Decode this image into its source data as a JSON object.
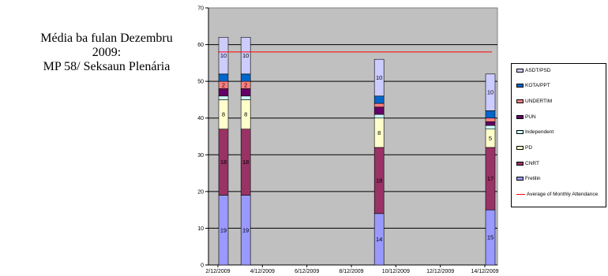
{
  "title_lines": [
    "Média ba fulan Dezembru",
    "2009:",
    "MP 58/ Seksaun Plenária"
  ],
  "chart_data": {
    "type": "bar",
    "stacked": true,
    "x_tick_labels": [
      "2/12/2009",
      "4/12/2009",
      "6/12/2009",
      "8/12/2009",
      "10/12/2009",
      "12/12/2009",
      "14/12/2009"
    ],
    "y_tick_labels": [
      "0",
      "10",
      "20",
      "30",
      "40",
      "50",
      "60",
      "70"
    ],
    "ylim": [
      0,
      70
    ],
    "grid": true,
    "legend_position": "right",
    "bars": [
      {
        "date": "2/12/2009",
        "total": 62
      },
      {
        "date": "3/12/2009",
        "total": 62
      },
      {
        "date": "9/12/2009",
        "total": 56
      },
      {
        "date": "14/12/2009",
        "total": 52
      }
    ],
    "series": [
      {
        "name": "Fretilin",
        "color": "#9999ff",
        "values": [
          19,
          19,
          14,
          15
        ],
        "labels": [
          "19",
          "19",
          "14",
          "15"
        ]
      },
      {
        "name": "CNRT",
        "color": "#993366",
        "values": [
          18,
          18,
          18,
          17
        ],
        "labels": [
          "18",
          "18",
          "18",
          "17"
        ]
      },
      {
        "name": "PD",
        "color": "#ffffcc",
        "values": [
          8,
          8,
          8,
          5
        ],
        "labels": [
          "8",
          "8",
          "8",
          "5"
        ]
      },
      {
        "name": "Independent",
        "color": "#ccffff",
        "values": [
          1,
          1,
          1,
          1
        ],
        "labels": [
          "",
          "",
          "",
          ""
        ]
      },
      {
        "name": "PUN",
        "color": "#660066",
        "values": [
          2,
          2,
          2,
          1
        ],
        "labels": [
          "",
          "",
          "",
          ""
        ]
      },
      {
        "name": "UNDERTIM",
        "color": "#ff8080",
        "values": [
          2,
          2,
          1,
          1
        ],
        "labels": [
          "2",
          "2",
          "",
          ""
        ]
      },
      {
        "name": "KOTA/PPT",
        "color": "#0066cc",
        "values": [
          2,
          2,
          2,
          2
        ],
        "labels": [
          "",
          "",
          "",
          ""
        ]
      },
      {
        "name": "ASDT/PSD",
        "color": "#ccccff",
        "values": [
          10,
          10,
          10,
          10
        ],
        "labels": [
          "10",
          "10",
          "10",
          "10"
        ]
      }
    ],
    "average_line": {
      "name": "Average of Monthly Attendance",
      "value": 58,
      "color": "#ff0000"
    },
    "plot_background": "#c0c0c0"
  }
}
